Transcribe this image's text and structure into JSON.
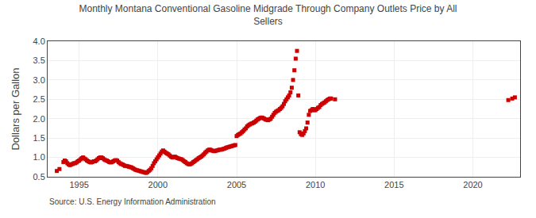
{
  "chart_data": {
    "type": "scatter",
    "title": "Monthly Montana Conventional Gasoline Midgrade Through Company Outlets Price by All\nSellers",
    "ylabel": "Dollars per Gallon",
    "source": "Source: U.S. Energy Information Administration",
    "color": "#cc0000",
    "marker": "square",
    "grid": true,
    "xlim": [
      1993.0,
      2023.0
    ],
    "ylim": [
      0.5,
      4.0
    ],
    "xticks": [
      1995,
      2000,
      2005,
      2010,
      2015,
      2020
    ],
    "yticks": [
      0.5,
      {
        "value": 1.0,
        "label": "1.0"
      },
      1.5,
      {
        "value": 2.0,
        "label": "2.0"
      },
      2.5,
      {
        "value": 3.0,
        "label": "3.0"
      },
      3.5,
      {
        "value": 4.0,
        "label": "4.0"
      }
    ],
    "x": [
      1993.583,
      1993.75,
      1994.0,
      1994.083,
      1994.167,
      1994.25,
      1994.333,
      1994.417,
      1994.5,
      1994.583,
      1994.667,
      1994.75,
      1994.833,
      1994.917,
      1995.0,
      1995.083,
      1995.167,
      1995.25,
      1995.333,
      1995.417,
      1995.5,
      1995.583,
      1995.667,
      1995.75,
      1995.833,
      1995.917,
      1996.0,
      1996.083,
      1996.167,
      1996.25,
      1996.333,
      1996.417,
      1996.5,
      1996.583,
      1996.667,
      1996.75,
      1996.833,
      1996.917,
      1997.0,
      1997.083,
      1997.167,
      1997.25,
      1997.333,
      1997.417,
      1997.5,
      1997.583,
      1997.667,
      1997.75,
      1997.833,
      1997.917,
      1998.0,
      1998.083,
      1998.167,
      1998.25,
      1998.333,
      1998.417,
      1998.5,
      1998.583,
      1998.667,
      1998.75,
      1998.833,
      1998.917,
      1999.0,
      1999.083,
      1999.167,
      1999.25,
      1999.333,
      1999.417,
      1999.5,
      1999.583,
      1999.667,
      1999.75,
      1999.833,
      1999.917,
      2000.0,
      2000.083,
      2000.167,
      2000.25,
      2000.333,
      2000.417,
      2000.5,
      2000.583,
      2000.667,
      2000.75,
      2000.833,
      2000.917,
      2001.0,
      2001.083,
      2001.167,
      2001.25,
      2001.333,
      2001.417,
      2001.5,
      2001.583,
      2001.667,
      2001.75,
      2001.833,
      2001.917,
      2002.0,
      2002.083,
      2002.167,
      2002.25,
      2002.333,
      2002.417,
      2002.5,
      2002.583,
      2002.667,
      2002.75,
      2002.833,
      2002.917,
      2003.0,
      2003.083,
      2003.167,
      2003.25,
      2003.333,
      2003.417,
      2003.5,
      2003.583,
      2003.667,
      2003.75,
      2003.833,
      2003.917,
      2004.0,
      2004.083,
      2004.167,
      2004.25,
      2004.333,
      2004.417,
      2004.5,
      2004.583,
      2004.667,
      2004.75,
      2004.833,
      2004.917,
      2005.0,
      2005.083,
      2005.167,
      2005.25,
      2005.333,
      2005.417,
      2005.5,
      2005.583,
      2005.667,
      2005.75,
      2005.833,
      2005.917,
      2006.0,
      2006.083,
      2006.167,
      2006.25,
      2006.333,
      2006.417,
      2006.5,
      2006.583,
      2006.667,
      2006.75,
      2006.833,
      2006.917,
      2007.0,
      2007.083,
      2007.167,
      2007.25,
      2007.333,
      2007.417,
      2007.5,
      2007.583,
      2007.667,
      2007.75,
      2007.833,
      2007.917,
      2008.0,
      2008.083,
      2008.167,
      2008.25,
      2008.333,
      2008.417,
      2008.5,
      2008.583,
      2008.667,
      2008.75,
      2008.833,
      2008.917,
      2009.0,
      2009.083,
      2009.167,
      2009.25,
      2009.333,
      2009.417,
      2009.5,
      2009.583,
      2009.667,
      2009.75,
      2009.833,
      2009.917,
      2010.0,
      2010.083,
      2010.167,
      2010.25,
      2010.333,
      2010.417,
      2010.5,
      2010.583,
      2010.667,
      2010.75,
      2010.833,
      2010.917,
      2011.0,
      2011.25,
      2022.25,
      2022.5,
      2022.667
    ],
    "values": [
      0.65,
      0.7,
      0.88,
      0.92,
      0.9,
      0.85,
      0.82,
      0.8,
      0.82,
      0.83,
      0.85,
      0.85,
      0.87,
      0.9,
      0.92,
      0.95,
      0.98,
      1.0,
      0.97,
      0.95,
      0.92,
      0.9,
      0.88,
      0.87,
      0.88,
      0.9,
      0.9,
      0.92,
      0.95,
      0.98,
      1.0,
      1.0,
      0.98,
      0.95,
      0.93,
      0.92,
      0.9,
      0.88,
      0.87,
      0.88,
      0.9,
      0.92,
      0.93,
      0.92,
      0.88,
      0.85,
      0.83,
      0.82,
      0.8,
      0.78,
      0.78,
      0.77,
      0.76,
      0.75,
      0.74,
      0.72,
      0.7,
      0.68,
      0.67,
      0.66,
      0.65,
      0.64,
      0.63,
      0.62,
      0.61,
      0.6,
      0.62,
      0.65,
      0.68,
      0.72,
      0.78,
      0.85,
      0.9,
      0.95,
      1.0,
      1.05,
      1.1,
      1.15,
      1.18,
      1.15,
      1.12,
      1.1,
      1.08,
      1.05,
      1.02,
      1.0,
      1.0,
      1.02,
      1.0,
      0.98,
      0.97,
      0.96,
      0.95,
      0.93,
      0.9,
      0.88,
      0.85,
      0.83,
      0.82,
      0.83,
      0.85,
      0.88,
      0.9,
      0.93,
      0.95,
      0.98,
      1.0,
      1.02,
      1.05,
      1.08,
      1.12,
      1.15,
      1.18,
      1.2,
      1.2,
      1.18,
      1.17,
      1.16,
      1.17,
      1.18,
      1.19,
      1.2,
      1.2,
      1.21,
      1.22,
      1.23,
      1.25,
      1.26,
      1.27,
      1.28,
      1.29,
      1.3,
      1.31,
      1.32,
      1.55,
      1.58,
      1.6,
      1.62,
      1.65,
      1.68,
      1.72,
      1.75,
      1.8,
      1.83,
      1.85,
      1.87,
      1.88,
      1.9,
      1.92,
      1.95,
      1.98,
      2.0,
      2.02,
      2.03,
      2.02,
      2.0,
      1.98,
      1.97,
      1.96,
      1.98,
      2.0,
      2.05,
      2.1,
      2.15,
      2.18,
      2.2,
      2.22,
      2.25,
      2.28,
      2.32,
      2.38,
      2.45,
      2.5,
      2.55,
      2.6,
      2.68,
      2.8,
      3.0,
      3.25,
      3.55,
      3.75,
      2.6,
      1.65,
      1.6,
      1.58,
      1.62,
      1.68,
      1.75,
      1.9,
      2.1,
      2.2,
      2.22,
      2.25,
      2.22,
      2.22,
      2.25,
      2.28,
      2.3,
      2.35,
      2.38,
      2.4,
      2.42,
      2.45,
      2.48,
      2.5,
      2.52,
      2.52,
      2.5,
      2.48,
      2.52,
      2.55
    ]
  }
}
